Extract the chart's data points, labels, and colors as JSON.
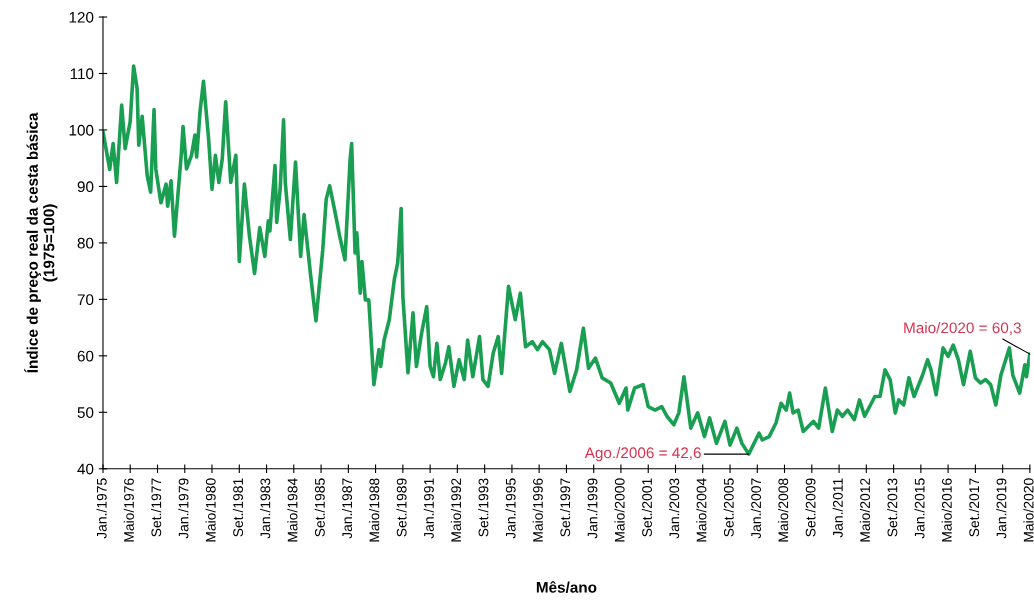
{
  "chart_data": {
    "type": "line",
    "xlabel": "Mês/ano",
    "ylabel": "Índice de preço real da cesta básica\n(1975=100)",
    "x": [
      "1975-01",
      "1975-05",
      "1975-07",
      "1975-09",
      "1975-12",
      "1976-02",
      "1976-05",
      "1976-07",
      "1976-09",
      "1976-10",
      "1976-12",
      "1977-03",
      "1977-05",
      "1977-07",
      "1977-08",
      "1977-11",
      "1978-02",
      "1978-03",
      "1978-05",
      "1978-07",
      "1978-11",
      "1978-12",
      "1979-02",
      "1979-05",
      "1979-07",
      "1979-08",
      "1979-10",
      "1979-12",
      "1980-03",
      "1980-05",
      "1980-07",
      "1980-09",
      "1980-11",
      "1981-01",
      "1981-04",
      "1981-07",
      "1981-09",
      "1981-12",
      "1982-03",
      "1982-06",
      "1982-09",
      "1982-12",
      "1983-02",
      "1983-03",
      "1983-06",
      "1983-07",
      "1983-09",
      "1983-11",
      "1983-12",
      "1984-03",
      "1984-06",
      "1984-09",
      "1984-11",
      "1985-03",
      "1985-06",
      "1985-10",
      "1985-12",
      "1986-02",
      "1986-05",
      "1986-08",
      "1986-11",
      "1987-02",
      "1987-03",
      "1987-05",
      "1987-06",
      "1987-08",
      "1987-09",
      "1987-11",
      "1988-01",
      "1988-04",
      "1988-07",
      "1988-08",
      "1988-10",
      "1989-01",
      "1989-04",
      "1989-06",
      "1989-08",
      "1989-09",
      "1989-12",
      "1990-03",
      "1990-05",
      "1990-08",
      "1990-11",
      "1991-01",
      "1991-03",
      "1991-05",
      "1991-07",
      "1991-10",
      "1991-12",
      "1992-03",
      "1992-06",
      "1992-09",
      "1992-11",
      "1993-02",
      "1993-06",
      "1993-08",
      "1993-11",
      "1994-02",
      "1994-05",
      "1994-07",
      "1994-11",
      "1995-03",
      "1995-06",
      "1995-09",
      "1996-01",
      "1996-04",
      "1996-07",
      "1996-11",
      "1997-02",
      "1997-06",
      "1997-11",
      "1998-03",
      "1998-07",
      "1998-10",
      "1999-02",
      "1999-06",
      "1999-11",
      "2000-04",
      "2000-08",
      "2000-09",
      "2001-01",
      "2001-06",
      "2001-09",
      "2002-01",
      "2002-05",
      "2002-08",
      "2002-12",
      "2003-03",
      "2003-06",
      "2003-10",
      "2004-02",
      "2004-06",
      "2004-09",
      "2005-01",
      "2005-06",
      "2005-09",
      "2006-01",
      "2006-04",
      "2006-08",
      "2007-02",
      "2007-04",
      "2007-08",
      "2007-12",
      "2008-03",
      "2008-06",
      "2008-08",
      "2008-10",
      "2009-01",
      "2009-04",
      "2009-10",
      "2010-01",
      "2010-05",
      "2010-09",
      "2010-12",
      "2011-03",
      "2011-06",
      "2011-10",
      "2012-01",
      "2012-04",
      "2012-10",
      "2013-01",
      "2013-04",
      "2013-07",
      "2013-10",
      "2013-12",
      "2014-03",
      "2014-06",
      "2014-09",
      "2015-02",
      "2015-05",
      "2015-07",
      "2015-10",
      "2016-02",
      "2016-05",
      "2016-08",
      "2016-11",
      "2017-02",
      "2017-06",
      "2017-09",
      "2017-12",
      "2018-03",
      "2018-06",
      "2018-09",
      "2018-12",
      "2019-05",
      "2019-07",
      "2019-11",
      "2020-02",
      "2020-03",
      "2020-05"
    ],
    "series": [
      {
        "color": "#1a9e52",
        "values": [
          99.7,
          93,
          97.6,
          90.7,
          104.4,
          96.7,
          101.5,
          111.3,
          107.4,
          97.3,
          102.4,
          91.9,
          89,
          103.6,
          93.1,
          87.1,
          90.4,
          86.5,
          91,
          81.2,
          95.8,
          100.6,
          93.1,
          95.5,
          99.1,
          95.2,
          103.3,
          108.6,
          98.5,
          89.5,
          95.5,
          90.7,
          94.9,
          105,
          90.7,
          95.5,
          76.7,
          90.4,
          81.2,
          74.6,
          82.7,
          77.6,
          83.9,
          82.1,
          93.7,
          83.6,
          89.5,
          101.8,
          90.7,
          80.6,
          94.3,
          77.6,
          85,
          74,
          66.2,
          78.8,
          87.7,
          90.1,
          85.8,
          81.1,
          77,
          94.7,
          97.6,
          78.2,
          81.8,
          71.1,
          76.7,
          69.9,
          69.9,
          54.9,
          61.1,
          58.1,
          62.8,
          66.4,
          73.5,
          76.5,
          86.1,
          70.5,
          57,
          67.6,
          58.1,
          64,
          68.7,
          58.1,
          56.3,
          62.2,
          55.8,
          58.7,
          61.6,
          54.6,
          59.3,
          55.8,
          62.8,
          56.3,
          63.4,
          55.8,
          54.6,
          60.5,
          63.4,
          56.9,
          72.3,
          66.4,
          71.1,
          61.6,
          62.5,
          61.1,
          62.5,
          61.1,
          56.9,
          62.2,
          53.7,
          57.5,
          64.9,
          57.8,
          59.6,
          56.1,
          55.2,
          51.6,
          54.3,
          50.4,
          54.3,
          54.9,
          51,
          50.4,
          51,
          49.3,
          47.8,
          49.9,
          56.3,
          47.2,
          49.9,
          45.7,
          49,
          44.5,
          48.4,
          44.2,
          47.2,
          44.5,
          42.6,
          46.3,
          45.1,
          45.7,
          48.1,
          51.6,
          50.4,
          53.4,
          49.9,
          50.4,
          46.6,
          48.4,
          47.2,
          54.3,
          46.6,
          50.4,
          49.3,
          50.4,
          48.7,
          52.2,
          49.3,
          52.8,
          52.8,
          57.5,
          55.8,
          49.9,
          52.2,
          51.3,
          56.1,
          52.8,
          56.6,
          59.3,
          57.5,
          53.1,
          61.4,
          59.9,
          61.9,
          59.3,
          54.9,
          60.8,
          56.1,
          55.2,
          55.8,
          54.9,
          51.3,
          56.6,
          61.4,
          56.6,
          53.4,
          58.4,
          56.3,
          60.3
        ]
      }
    ],
    "xlim": [
      "1975-01",
      "2020-05"
    ],
    "xticks": [
      {
        "value": "1975-01",
        "label": "Jan./1975"
      },
      {
        "value": "1976-05",
        "label": "Maio/1976"
      },
      {
        "value": "1977-09",
        "label": "Set./1977"
      },
      {
        "value": "1979-01",
        "label": "Jan./1979"
      },
      {
        "value": "1980-05",
        "label": "Maio/1980"
      },
      {
        "value": "1981-09",
        "label": "Set./1981"
      },
      {
        "value": "1983-01",
        "label": "Jan./1983"
      },
      {
        "value": "1984-05",
        "label": "Maio/1984"
      },
      {
        "value": "1985-09",
        "label": "Set./1985"
      },
      {
        "value": "1987-01",
        "label": "Jan./1987"
      },
      {
        "value": "1988-05",
        "label": "Maio/1988"
      },
      {
        "value": "1989-09",
        "label": "Set./1989"
      },
      {
        "value": "1991-01",
        "label": "Jan./1991"
      },
      {
        "value": "1992-05",
        "label": "Maio/1992"
      },
      {
        "value": "1993-09",
        "label": "Set./1993"
      },
      {
        "value": "1995-01",
        "label": "Jan./1995"
      },
      {
        "value": "1996-05",
        "label": "Maio/1996"
      },
      {
        "value": "1997-09",
        "label": "Set./1997"
      },
      {
        "value": "1999-01",
        "label": "Jan./1999"
      },
      {
        "value": "2000-05",
        "label": "Maio/2000"
      },
      {
        "value": "2001-09",
        "label": "Set./2001"
      },
      {
        "value": "2003-01",
        "label": "Jan./2003"
      },
      {
        "value": "2004-05",
        "label": "Maio/2004"
      },
      {
        "value": "2005-09",
        "label": "Set./2005"
      },
      {
        "value": "2007-01",
        "label": "Jan./2007"
      },
      {
        "value": "2008-05",
        "label": "Maio/2008"
      },
      {
        "value": "2009-09",
        "label": "Set./2009"
      },
      {
        "value": "2011-01",
        "label": "Jan./2011"
      },
      {
        "value": "2012-05",
        "label": "Maio/2012"
      },
      {
        "value": "2013-09",
        "label": "Set./2013"
      },
      {
        "value": "2015-01",
        "label": "Jan./2015"
      },
      {
        "value": "2016-05",
        "label": "Maio/2016"
      },
      {
        "value": "2017-09",
        "label": "Set./2017"
      },
      {
        "value": "2019-01",
        "label": "Jan./2019"
      },
      {
        "value": "2020-05",
        "label": "Maio/2020"
      }
    ],
    "ylim": [
      40,
      120
    ],
    "yticks": [
      40,
      50,
      60,
      70,
      80,
      90,
      100,
      110,
      120
    ],
    "grid": false,
    "annotations": [
      {
        "text": "Ago./2006 = 42,6",
        "x": "2006-08",
        "y": 42.6
      },
      {
        "text": "Maio/2020 = 60,3",
        "x": "2020-05",
        "y": 60.3
      }
    ]
  }
}
